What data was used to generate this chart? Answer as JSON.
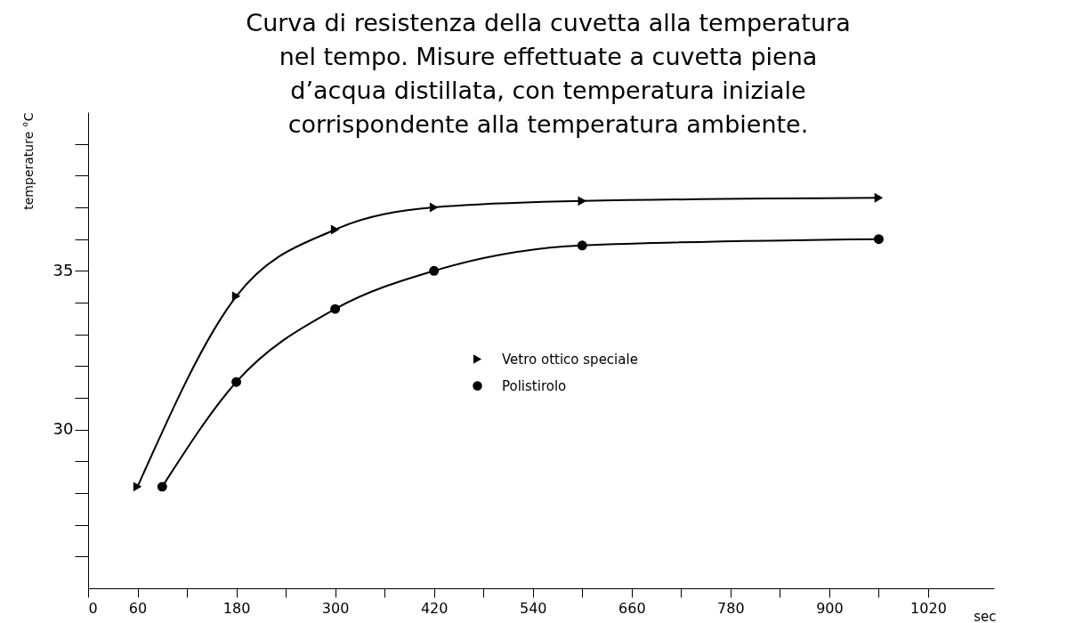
{
  "chart_data": {
    "type": "line",
    "title": "Curva di resistenza della cuvetta alla temperatura\nnel tempo. Misure effettuate a cuvetta piena\nd’acqua distillata, con temperatura iniziale\ncorrispondente alla temperatura ambiente.",
    "xlabel": "sec",
    "ylabel": "temperature °C",
    "xlim": [
      0,
      1100
    ],
    "xticks": [
      0,
      60,
      {
        "value": 120,
        "label": null
      },
      180,
      {
        "value": 240,
        "label": null
      },
      300,
      {
        "value": 360,
        "label": null
      },
      420,
      {
        "value": 480,
        "label": null
      },
      540,
      {
        "value": 600,
        "label": null
      },
      660,
      {
        "value": 720,
        "label": null
      },
      780,
      {
        "value": 840,
        "label": null
      },
      900,
      {
        "value": 960,
        "label": null
      },
      1020
    ],
    "ylim": [
      25,
      40
    ],
    "yticks": [
      {
        "value": 26,
        "label": null
      },
      {
        "value": 27,
        "label": null
      },
      {
        "value": 28,
        "label": null
      },
      {
        "value": 29,
        "label": null
      },
      30,
      {
        "value": 31,
        "label": null
      },
      {
        "value": 32,
        "label": null
      },
      {
        "value": 33,
        "label": null
      },
      {
        "value": 34,
        "label": null
      },
      35,
      {
        "value": 36,
        "label": null
      },
      {
        "value": 37,
        "label": null
      },
      {
        "value": 38,
        "label": null
      },
      {
        "value": 39,
        "label": null
      }
    ],
    "grid": false,
    "legend": "center",
    "line_style": "solid",
    "series": [
      {
        "name": "Vetro ottico speciale",
        "color": "#000000",
        "marker": "triangle",
        "x": [
          60,
          180,
          300,
          420,
          600,
          960
        ],
        "values": [
          28.2,
          34.2,
          36.3,
          37.0,
          37.2,
          37.3
        ]
      },
      {
        "name": "Polistirolo",
        "color": "#000000",
        "marker": "circle",
        "x": [
          90,
          180,
          300,
          420,
          600,
          960
        ],
        "values": [
          28.2,
          31.5,
          33.8,
          35.0,
          35.8,
          36.0
        ]
      }
    ]
  }
}
